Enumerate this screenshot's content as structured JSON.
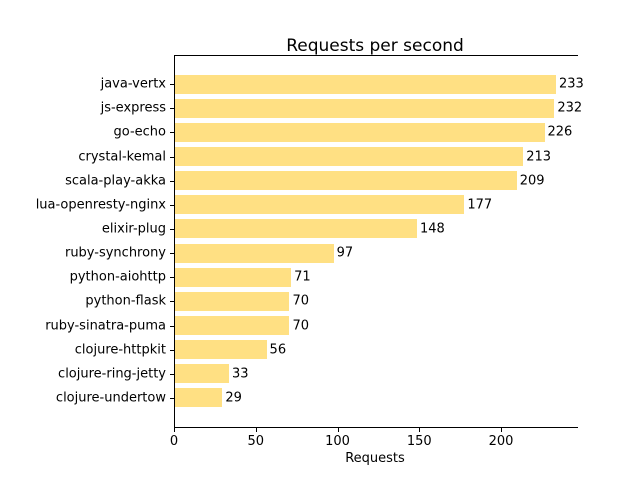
{
  "chart_data": {
    "type": "bar",
    "orientation": "horizontal",
    "title": "Requests per second",
    "xlabel": "Requests",
    "ylabel": "",
    "categories": [
      "java-vertx",
      "js-express",
      "go-echo",
      "crystal-kemal",
      "scala-play-akka",
      "lua-openresty-nginx",
      "elixir-plug",
      "ruby-synchrony",
      "python-aiohttp",
      "python-flask",
      "ruby-sinatra-puma",
      "clojure-httpkit",
      "clojure-ring-jetty",
      "clojure-undertow"
    ],
    "values": [
      233,
      232,
      226,
      213,
      209,
      177,
      148,
      97,
      71,
      70,
      70,
      56,
      33,
      29
    ],
    "value_labels": [
      "233",
      "232",
      "226",
      "213",
      "209",
      "177",
      "148",
      "97",
      "71",
      "70",
      "70",
      "56",
      "33",
      "29"
    ],
    "xticks": [
      0,
      50,
      100,
      150,
      200
    ],
    "xlim": [
      0,
      246
    ],
    "grid": false,
    "legend": null,
    "bar_color": "#ffe083",
    "text_color": "#000000",
    "background_color": "#ffffff",
    "spines": {
      "left": true,
      "top": true,
      "bottom": true,
      "right": false
    }
  }
}
